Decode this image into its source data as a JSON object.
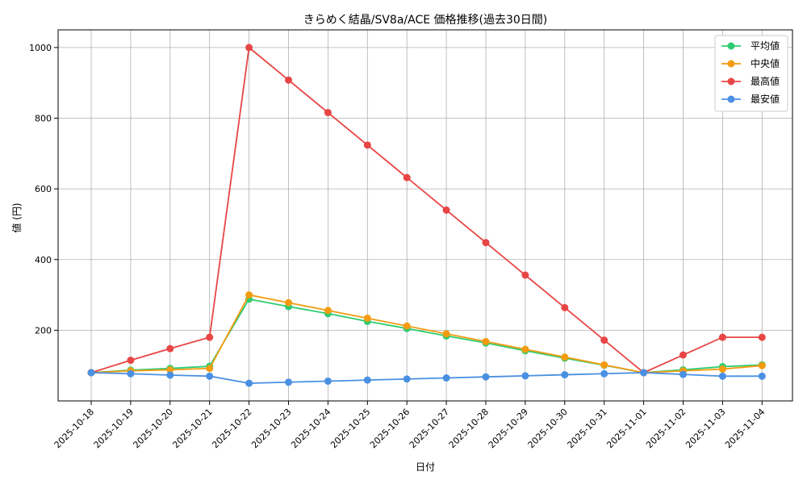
{
  "chart_data": {
    "type": "line",
    "title": "きらめく結晶/SV8a/ACE 価格推移(過去30日間)",
    "xlabel": "日付",
    "ylabel": "値 (円)",
    "x": [
      "2025-10-18",
      "2025-10-19",
      "2025-10-20",
      "2025-10-21",
      "2025-10-22",
      "2025-10-23",
      "2025-10-24",
      "2025-10-25",
      "2025-10-26",
      "2025-10-27",
      "2025-10-28",
      "2025-10-29",
      "2025-10-30",
      "2025-10-31",
      "2025-11-01",
      "2025-11-02",
      "2025-11-03",
      "2025-11-04"
    ],
    "ylim": [
      0,
      1050
    ],
    "yticks": [
      200,
      400,
      600,
      800,
      1000
    ],
    "grid": true,
    "legend_position": "top-right",
    "series": [
      {
        "name": "平均値",
        "color": "#2ecc71",
        "values": [
          80,
          87,
          92,
          98,
          288,
          267,
          247,
          225,
          205,
          184,
          164,
          142,
          121,
          101,
          80,
          88,
          97,
          102
        ]
      },
      {
        "name": "中央値",
        "color": "#f39c12",
        "values": [
          80,
          85,
          88,
          92,
          300,
          278,
          256,
          234,
          212,
          190,
          168,
          146,
          124,
          102,
          80,
          85,
          90,
          100
        ]
      },
      {
        "name": "最高値",
        "color": "#e84545",
        "values": [
          80,
          115,
          148,
          180,
          1000,
          908,
          816,
          724,
          632,
          540,
          448,
          356,
          264,
          172,
          80,
          130,
          180,
          180
        ]
      },
      {
        "name": "最安値",
        "color": "#4a90e2",
        "values": [
          80,
          77,
          73,
          70,
          50,
          53,
          56,
          59,
          62,
          65,
          68,
          71,
          74,
          77,
          80,
          75,
          70,
          70
        ]
      }
    ]
  }
}
